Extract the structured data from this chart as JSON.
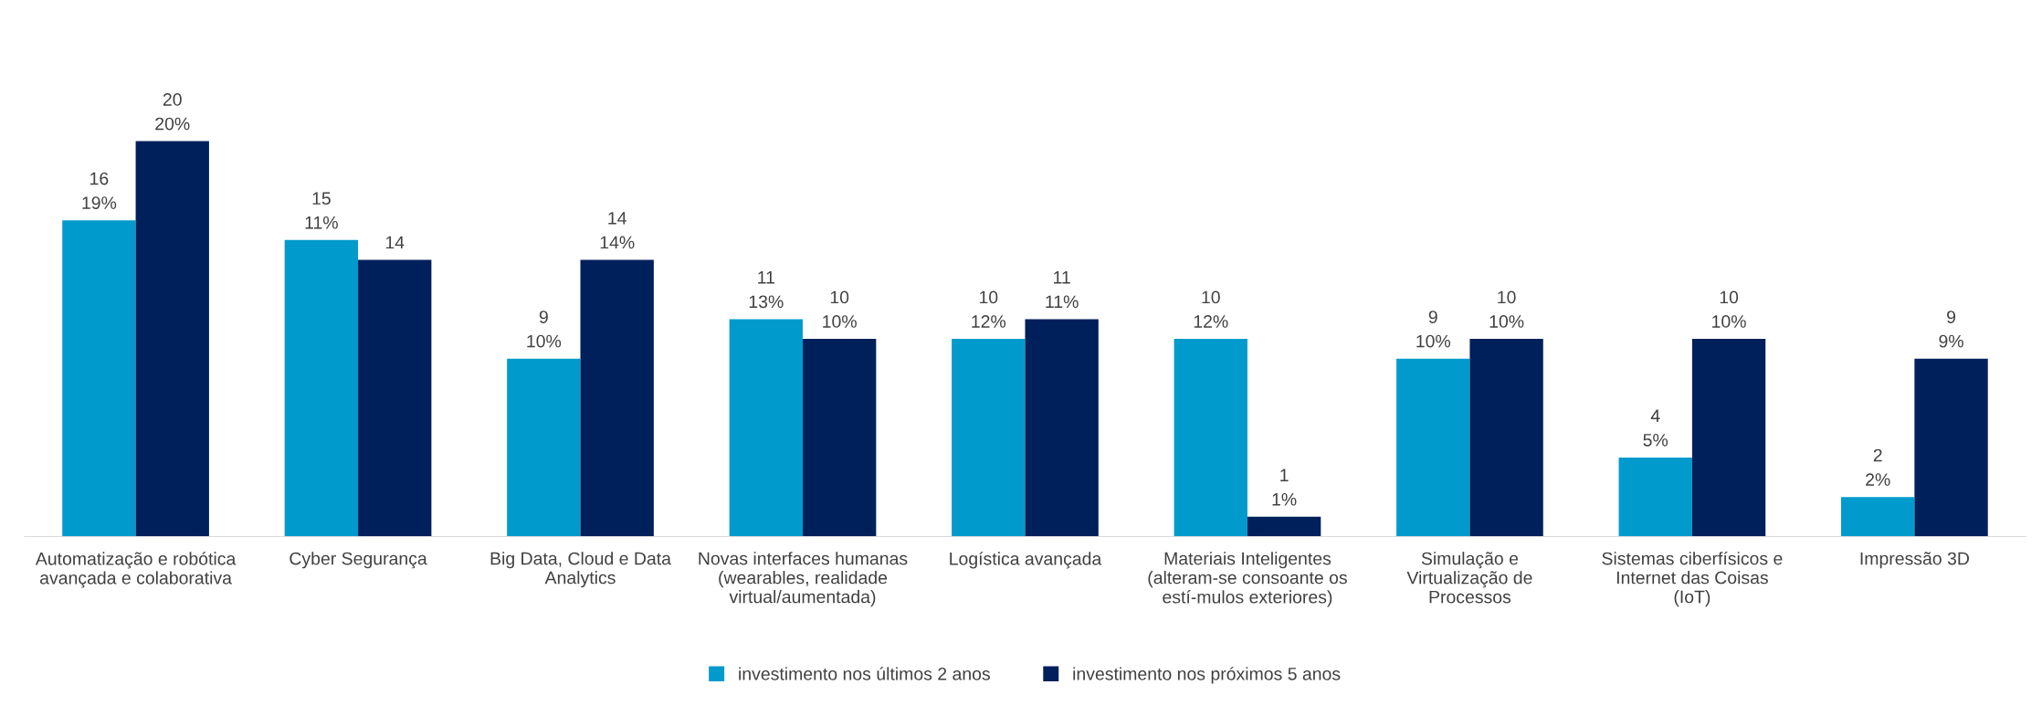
{
  "chart_data": {
    "type": "bar",
    "categories": [
      "Automatização e robótica avançada e colaborativa",
      "Cyber Segurança",
      "Big Data, Cloud e Data Analytics",
      "Novas interfaces humanas (wearables, realidade virtual/aumentada)",
      "Logística avançada",
      "Materiais Inteligentes (alteram-se consoante os estí-mulos exteriores)",
      "Simulação e Virtualização de Processos",
      "Sistemas ciberfísicos e Internet das Coisas (IoT)",
      "Impressão 3D"
    ],
    "series": [
      {
        "name": "investimento nos últimos 2 anos",
        "color": "#009bcc",
        "values": [
          16,
          15,
          9,
          11,
          10,
          10,
          9,
          4,
          2
        ],
        "value_labels": [
          "16\n19%",
          "15\n11%",
          "9\n10%",
          "11\n13%",
          "10\n12%",
          "10\n12%",
          "9\n10%",
          "4\n5%",
          "2\n2%"
        ]
      },
      {
        "name": "investimento nos próximos 5 anos",
        "color": "#00205b",
        "values": [
          20,
          14,
          14,
          10,
          11,
          1,
          10,
          10,
          9
        ],
        "value_labels": [
          "20\n20%",
          "14",
          "14\n14%",
          "10\n10%",
          "11\n11%",
          "1\n1%",
          "10\n10%",
          "10\n10%",
          "9\n9%"
        ]
      }
    ],
    "legend": "bottom",
    "grid": false
  }
}
